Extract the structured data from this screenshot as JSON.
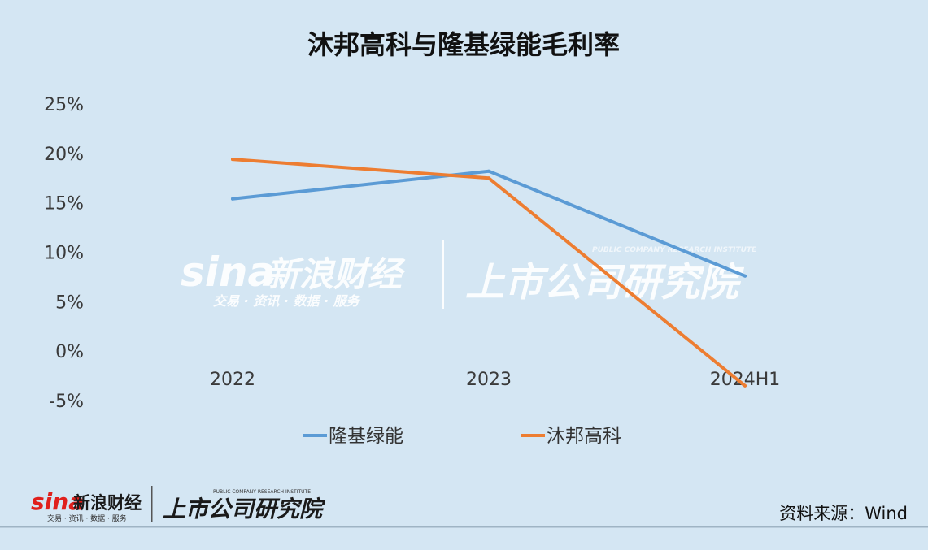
{
  "chart_data": {
    "type": "line",
    "title": "沐邦高科与隆基绿能毛利率",
    "categories": [
      "2022",
      "2023",
      "2024H1"
    ],
    "series": [
      {
        "name": "隆基绿能",
        "color": "#5b9bd5",
        "values": [
          15.4,
          18.2,
          7.6
        ]
      },
      {
        "name": "沐邦高科",
        "color": "#ed7d31",
        "values": [
          19.4,
          17.5,
          -3.5
        ]
      }
    ],
    "y_ticks": [
      "25%",
      "20%",
      "15%",
      "10%",
      "5%",
      "0%",
      "-5%"
    ],
    "y_tick_values": [
      25,
      20,
      15,
      10,
      5,
      0,
      -5
    ],
    "ylim": [
      -5,
      25
    ],
    "grid": false,
    "legend_position": "bottom"
  },
  "watermark": {
    "sina_brand": "sina",
    "sina_name": "新浪财经",
    "sina_tagline": "交易 · 资讯 · 数据 · 服务",
    "institute_name": "上市公司研究院",
    "institute_english": "PUBLIC COMPANY RESEARCH INSTITUTE"
  },
  "footer": {
    "source": "资料来源：Wind"
  },
  "colors": {
    "background": "#d4e6f3",
    "brand_red": "#e0201c"
  }
}
